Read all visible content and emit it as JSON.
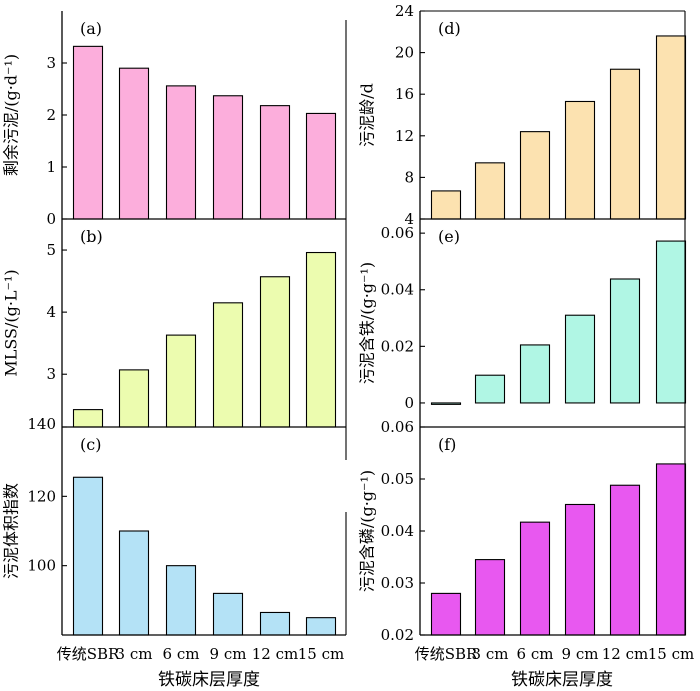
{
  "figure": {
    "xaxis_title_left": "铁碳床层厚度",
    "xaxis_title_right": "铁碳床层厚度"
  },
  "chart_data": [
    {
      "id": "a",
      "type": "bar",
      "panel_label": "(a)",
      "ylabel": "剩余污泥/(g·d⁻¹)",
      "categories": [
        "传统SBR",
        "3 cm",
        "6 cm",
        "9 cm",
        "12 cm",
        "15 cm"
      ],
      "values": [
        3.32,
        2.9,
        2.56,
        2.37,
        2.18,
        2.03
      ],
      "ylim": [
        0,
        4
      ],
      "yticks": [
        0,
        1,
        2,
        3
      ],
      "ytick_labels": [
        "0",
        "1",
        "2",
        "3"
      ],
      "color": "#fcaedc",
      "show_xticklabels": false
    },
    {
      "id": "b",
      "type": "bar",
      "panel_label": "(b)",
      "ylabel": "MLSS/(g·L⁻¹)",
      "categories": [
        "传统SBR",
        "3 cm",
        "6 cm",
        "9 cm",
        "12 cm",
        "15 cm"
      ],
      "values": [
        2.43,
        3.07,
        3.63,
        4.15,
        4.57,
        4.96
      ],
      "ylim": [
        2.15,
        5.5
      ],
      "yticks": [
        3,
        4,
        5
      ],
      "ytick_labels": [
        "3",
        "4",
        "5"
      ],
      "color": "#ecfcaf",
      "show_xticklabels": false
    },
    {
      "id": "c",
      "type": "bar",
      "panel_label": "(c)",
      "ylabel": "污泥体积指数",
      "categories": [
        "传统SBR",
        "3 cm",
        "6 cm",
        "9 cm",
        "12 cm",
        "15 cm"
      ],
      "values": [
        125.5,
        110,
        100,
        92,
        86.5,
        85
      ],
      "ylim": [
        80,
        140
      ],
      "yticks": [
        100,
        120,
        140
      ],
      "ytick_labels": [
        "100",
        "120",
        "140"
      ],
      "color": "#b4e2f6",
      "show_xticklabels": true
    },
    {
      "id": "d",
      "type": "bar",
      "panel_label": "(d)",
      "ylabel": "污泥龄/d",
      "categories": [
        "传统SBR",
        "3 cm",
        "6 cm",
        "9 cm",
        "12 cm",
        "15 cm"
      ],
      "values": [
        6.7,
        9.4,
        12.4,
        15.3,
        18.4,
        21.6
      ],
      "ylim": [
        4,
        24
      ],
      "yticks": [
        4,
        8,
        12,
        16,
        20,
        24
      ],
      "ytick_labels": [
        "4",
        "8",
        "12",
        "16",
        "20",
        "24"
      ],
      "color": "#fce2b0",
      "show_xticklabels": false
    },
    {
      "id": "e",
      "type": "bar",
      "panel_label": "(e)",
      "ylabel": "污泥含铁/(g·g⁻¹)",
      "categories": [
        "传统SBR",
        "3 cm",
        "6 cm",
        "9 cm",
        "12 cm",
        "15 cm"
      ],
      "values": [
        -0.0005,
        0.0098,
        0.0205,
        0.031,
        0.0438,
        0.0572
      ],
      "ylim": [
        -0.0085,
        0.065
      ],
      "yticks": [
        0,
        0.02,
        0.04,
        0.06
      ],
      "ytick_labels": [
        "0",
        "0.02",
        "0.04",
        "0.06"
      ],
      "color": "#b0f6e4",
      "show_xticklabels": false
    },
    {
      "id": "f",
      "type": "bar",
      "panel_label": "(f)",
      "ylabel": "污泥含磷/(g·g⁻¹)",
      "categories": [
        "传统SBR",
        "3 cm",
        "6 cm",
        "9 cm",
        "12 cm",
        "15 cm"
      ],
      "values": [
        0.028,
        0.0345,
        0.0417,
        0.0451,
        0.0488,
        0.0529
      ],
      "ylim": [
        0.02,
        0.06
      ],
      "yticks": [
        0.02,
        0.03,
        0.04,
        0.05,
        0.06
      ],
      "ytick_labels": [
        "0.02",
        "0.03",
        "0.04",
        "0.05",
        "0.06"
      ],
      "color": "#e858f0",
      "show_xticklabels": true
    }
  ]
}
